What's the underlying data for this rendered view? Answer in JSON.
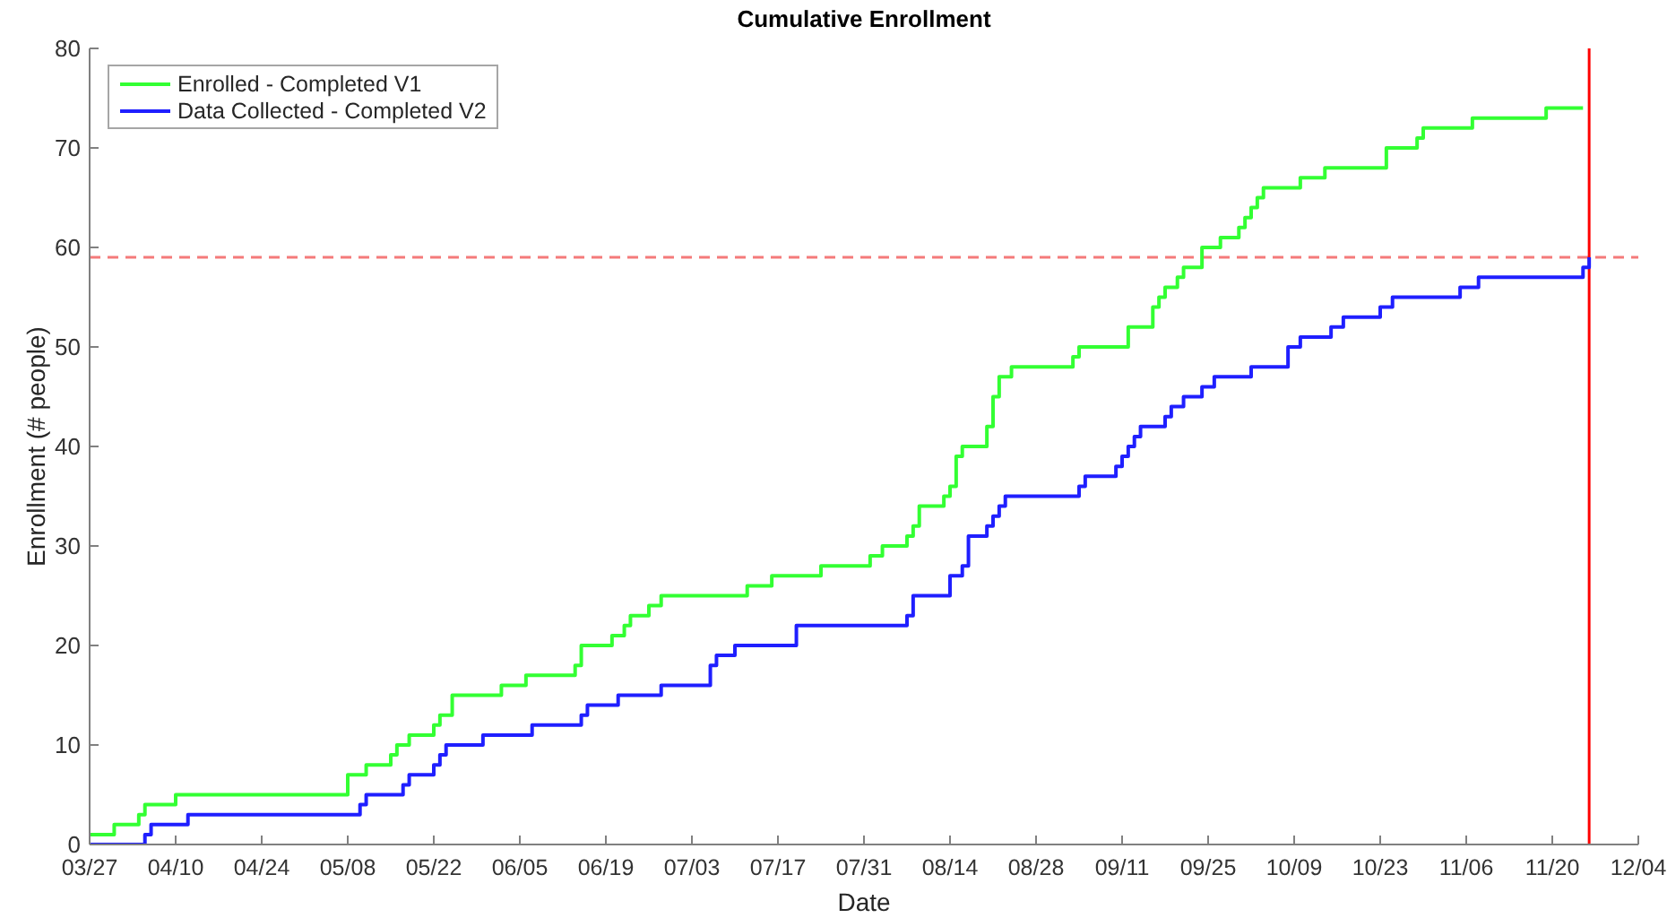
{
  "chart_data": {
    "type": "step",
    "title": "Cumulative Enrollment",
    "xlabel": "Date",
    "ylabel": "Enrollment (# people)",
    "xlim": [
      "--03-27",
      "--12-04"
    ],
    "xticks": [
      {
        "value": "--03-27",
        "label": "03/27"
      },
      {
        "value": "--04-10",
        "label": "04/10"
      },
      {
        "value": "--04-24",
        "label": "04/24"
      },
      {
        "value": "--05-08",
        "label": "05/08"
      },
      {
        "value": "--05-22",
        "label": "05/22"
      },
      {
        "value": "--06-05",
        "label": "06/05"
      },
      {
        "value": "--06-19",
        "label": "06/19"
      },
      {
        "value": "--07-03",
        "label": "07/03"
      },
      {
        "value": "--07-17",
        "label": "07/17"
      },
      {
        "value": "--07-31",
        "label": "07/31"
      },
      {
        "value": "--08-14",
        "label": "08/14"
      },
      {
        "value": "--08-28",
        "label": "08/28"
      },
      {
        "value": "--09-11",
        "label": "09/11"
      },
      {
        "value": "--09-25",
        "label": "09/25"
      },
      {
        "value": "--10-09",
        "label": "10/09"
      },
      {
        "value": "--10-23",
        "label": "10/23"
      },
      {
        "value": "--11-06",
        "label": "11/06"
      },
      {
        "value": "--11-20",
        "label": "11/20"
      },
      {
        "value": "--12-04",
        "label": "12/04"
      }
    ],
    "ylim": [
      0,
      80
    ],
    "yticks": [
      0,
      10,
      20,
      30,
      40,
      50,
      60,
      70,
      80
    ],
    "legend": "top left",
    "series": [
      {
        "name": "Enrolled - Completed V1",
        "color": "#33ff33",
        "x": [
          "--03-27",
          "--03-31",
          "--04-04",
          "--04-05",
          "--04-10",
          "--05-08",
          "--05-11",
          "--05-15",
          "--05-16",
          "--05-18",
          "--05-22",
          "--05-23",
          "--05-25",
          "--06-02",
          "--06-06",
          "--06-14",
          "--06-15",
          "--06-20",
          "--06-22",
          "--06-23",
          "--06-26",
          "--06-28",
          "--07-12",
          "--07-16",
          "--07-24",
          "--08-01",
          "--08-03",
          "--08-07",
          "--08-08",
          "--08-09",
          "--08-13",
          "--08-14",
          "--08-15",
          "--08-16",
          "--08-20",
          "--08-21",
          "--08-22",
          "--08-24",
          "--09-03",
          "--09-04",
          "--09-12",
          "--09-16",
          "--09-17",
          "--09-18",
          "--09-20",
          "--09-21",
          "--09-24",
          "--09-27",
          "--09-30",
          "--10-01",
          "--10-02",
          "--10-03",
          "--10-04",
          "--10-10",
          "--10-14",
          "--10-24",
          "--10-29",
          "--10-30",
          "--11-07",
          "--11-19",
          "--11-25"
        ],
        "values": [
          1,
          2,
          3,
          4,
          5,
          7,
          8,
          9,
          10,
          11,
          12,
          13,
          15,
          16,
          17,
          18,
          20,
          21,
          22,
          23,
          24,
          25,
          26,
          27,
          28,
          29,
          30,
          31,
          32,
          34,
          35,
          36,
          39,
          40,
          42,
          45,
          47,
          48,
          49,
          50,
          52,
          54,
          55,
          56,
          57,
          58,
          60,
          61,
          62,
          63,
          64,
          65,
          66,
          67,
          68,
          70,
          71,
          72,
          73,
          74,
          74
        ]
      },
      {
        "name": "Data Collected - Completed V2",
        "color": "#1f1fff",
        "x": [
          "--03-27",
          "--04-05",
          "--04-06",
          "--04-12",
          "--05-10",
          "--05-11",
          "--05-17",
          "--05-18",
          "--05-22",
          "--05-23",
          "--05-24",
          "--05-30",
          "--06-07",
          "--06-15",
          "--06-16",
          "--06-21",
          "--06-28",
          "--07-06",
          "--07-07",
          "--07-10",
          "--07-20",
          "--08-07",
          "--08-08",
          "--08-14",
          "--08-16",
          "--08-17",
          "--08-20",
          "--08-21",
          "--08-22",
          "--08-23",
          "--09-04",
          "--09-05",
          "--09-10",
          "--09-11",
          "--09-12",
          "--09-13",
          "--09-14",
          "--09-18",
          "--09-19",
          "--09-21",
          "--09-24",
          "--09-26",
          "--10-02",
          "--10-08",
          "--10-10",
          "--10-15",
          "--10-17",
          "--10-23",
          "--10-25",
          "--11-05",
          "--11-08",
          "--11-25",
          "--11-26"
        ],
        "values": [
          0,
          1,
          2,
          3,
          4,
          5,
          6,
          7,
          8,
          9,
          10,
          11,
          12,
          13,
          14,
          15,
          16,
          18,
          19,
          20,
          22,
          23,
          25,
          27,
          28,
          31,
          32,
          33,
          34,
          35,
          36,
          37,
          38,
          39,
          40,
          41,
          42,
          43,
          44,
          45,
          46,
          47,
          48,
          50,
          51,
          52,
          53,
          54,
          55,
          56,
          57,
          58,
          59
        ]
      }
    ],
    "ref_lines": [
      {
        "axis": "y",
        "value": 59,
        "color": "#f47a7a",
        "line_style": "dashed"
      },
      {
        "axis": "x",
        "value": "--11-26",
        "color": "#ff0000"
      }
    ]
  }
}
